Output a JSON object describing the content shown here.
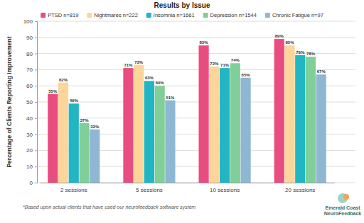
{
  "chart_data": {
    "type": "bar",
    "title": "Results by Issue",
    "y_label": "Percentage of Clients Reporting Improvement",
    "categories": [
      "2 sessions",
      "5 sessions",
      "10 sessions",
      "20 sessions"
    ],
    "series": [
      {
        "name": "PTSD n=819",
        "color": "#e94d7f",
        "values": [
          55,
          71,
          85,
          89
        ],
        "value_labels": [
          "55%",
          "71%",
          "85%",
          "89%"
        ]
      },
      {
        "name": "Nightmares n=222",
        "color": "#fcd59a",
        "values": [
          62,
          73,
          72,
          85
        ],
        "value_labels": [
          "62%",
          "73%",
          "72%",
          "85%"
        ]
      },
      {
        "name": "Insomnia n=1661",
        "color": "#22b6c5",
        "values": [
          49,
          63,
          71,
          79
        ],
        "value_labels": [
          "49%",
          "63%",
          "71%",
          "79%"
        ]
      },
      {
        "name": "Depression n=1544",
        "color": "#80cf99",
        "values": [
          37,
          60,
          74,
          78
        ],
        "value_labels": [
          "37%",
          "60%",
          "74%",
          "78%"
        ]
      },
      {
        "name": "Chronic Fatigue n=97",
        "color": "#8db7d3",
        "values": [
          33,
          51,
          65,
          67
        ],
        "value_labels": [
          "33%",
          "51%",
          "65%",
          "67%"
        ]
      }
    ],
    "ylim": [
      0,
      100
    ],
    "yticks": [
      0,
      10,
      20,
      30,
      40,
      50,
      60,
      70,
      80,
      90,
      100
    ],
    "grid": true,
    "legend": "top",
    "data_labels": true,
    "annotations": [
      "*Based upon actual clients that have used our neurofeedback software system",
      "Emerald Coast",
      "NeuroFeedback"
    ]
  }
}
